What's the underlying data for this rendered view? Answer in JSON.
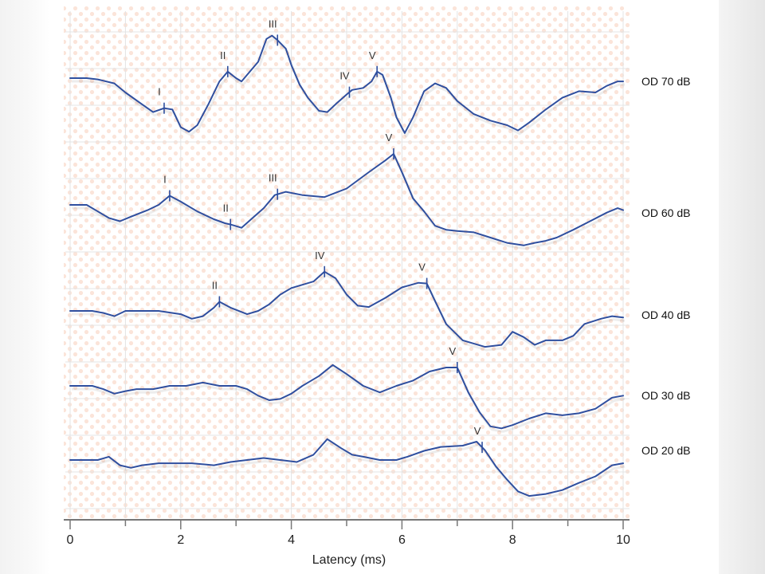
{
  "chart_data": {
    "type": "line",
    "title": "",
    "xlabel": "Latency (ms)",
    "ylabel": "",
    "xlim": [
      0,
      10
    ],
    "xticks": [
      "0",
      "2",
      "4",
      "6",
      "8",
      "10"
    ],
    "grid": true,
    "series": [
      {
        "name": "OD 70 dB",
        "color": "#2f4f9f",
        "points": [
          [
            0,
            0
          ],
          [
            0.3,
            0
          ],
          [
            0.5,
            -2
          ],
          [
            0.8,
            -8
          ],
          [
            1.0,
            -22
          ],
          [
            1.3,
            -40
          ],
          [
            1.5,
            -52
          ],
          [
            1.7,
            -46
          ],
          [
            1.85,
            -48
          ],
          [
            2.0,
            -75
          ],
          [
            2.15,
            -82
          ],
          [
            2.3,
            -72
          ],
          [
            2.5,
            -40
          ],
          [
            2.7,
            -5
          ],
          [
            2.85,
            10
          ],
          [
            3.0,
            0
          ],
          [
            3.1,
            -5
          ],
          [
            3.2,
            5
          ],
          [
            3.4,
            25
          ],
          [
            3.55,
            60
          ],
          [
            3.65,
            65
          ],
          [
            3.75,
            58
          ],
          [
            3.9,
            45
          ],
          [
            4.0,
            20
          ],
          [
            4.15,
            -10
          ],
          [
            4.3,
            -30
          ],
          [
            4.5,
            -50
          ],
          [
            4.65,
            -52
          ],
          [
            4.8,
            -40
          ],
          [
            5.0,
            -25
          ],
          [
            5.1,
            -18
          ],
          [
            5.3,
            -15
          ],
          [
            5.45,
            -5
          ],
          [
            5.55,
            10
          ],
          [
            5.65,
            5
          ],
          [
            5.8,
            -30
          ],
          [
            5.9,
            -60
          ],
          [
            6.05,
            -84
          ],
          [
            6.2,
            -60
          ],
          [
            6.4,
            -20
          ],
          [
            6.6,
            -8
          ],
          [
            6.8,
            -15
          ],
          [
            7.0,
            -35
          ],
          [
            7.3,
            -55
          ],
          [
            7.6,
            -65
          ],
          [
            7.9,
            -72
          ],
          [
            8.1,
            -80
          ],
          [
            8.3,
            -68
          ],
          [
            8.6,
            -48
          ],
          [
            8.9,
            -30
          ],
          [
            9.2,
            -20
          ],
          [
            9.5,
            -22
          ],
          [
            9.7,
            -12
          ],
          [
            9.9,
            -5
          ],
          [
            10.0,
            -5
          ]
        ],
        "peaks": [
          {
            "label": "I",
            "x": 1.7
          },
          {
            "label": "II",
            "x": 2.85
          },
          {
            "label": "III",
            "x": 3.75
          },
          {
            "label": "IV",
            "x": 5.05
          },
          {
            "label": "V",
            "x": 5.55
          }
        ]
      },
      {
        "name": "OD 60 dB",
        "color": "#2f4f9f",
        "points": [
          [
            0,
            0
          ],
          [
            0.3,
            0
          ],
          [
            0.5,
            -10
          ],
          [
            0.7,
            -20
          ],
          [
            0.9,
            -25
          ],
          [
            1.1,
            -18
          ],
          [
            1.4,
            -8
          ],
          [
            1.6,
            0
          ],
          [
            1.8,
            14
          ],
          [
            2.0,
            5
          ],
          [
            2.3,
            -10
          ],
          [
            2.6,
            -22
          ],
          [
            2.8,
            -28
          ],
          [
            2.9,
            -30
          ],
          [
            3.1,
            -35
          ],
          [
            3.3,
            -20
          ],
          [
            3.5,
            -5
          ],
          [
            3.7,
            15
          ],
          [
            3.9,
            20
          ],
          [
            4.2,
            15
          ],
          [
            4.6,
            12
          ],
          [
            5.0,
            25
          ],
          [
            5.4,
            50
          ],
          [
            5.7,
            68
          ],
          [
            5.85,
            78
          ],
          [
            6.0,
            50
          ],
          [
            6.2,
            10
          ],
          [
            6.4,
            -10
          ],
          [
            6.6,
            -32
          ],
          [
            6.8,
            -38
          ],
          [
            7.0,
            -40
          ],
          [
            7.3,
            -42
          ],
          [
            7.6,
            -50
          ],
          [
            7.9,
            -58
          ],
          [
            8.2,
            -62
          ],
          [
            8.4,
            -58
          ],
          [
            8.6,
            -55
          ],
          [
            8.8,
            -50
          ],
          [
            9.1,
            -38
          ],
          [
            9.4,
            -25
          ],
          [
            9.7,
            -12
          ],
          [
            9.9,
            -5
          ],
          [
            10.0,
            -8
          ]
        ],
        "peaks": [
          {
            "label": "I",
            "x": 1.8
          },
          {
            "label": "II",
            "x": 2.9
          },
          {
            "label": "III",
            "x": 3.75
          },
          {
            "label": "V",
            "x": 5.85
          }
        ]
      },
      {
        "name": "OD 40 dB",
        "color": "#2f4f9f",
        "points": [
          [
            0,
            0
          ],
          [
            0.4,
            0
          ],
          [
            0.6,
            -3
          ],
          [
            0.8,
            -8
          ],
          [
            1.0,
            0
          ],
          [
            1.3,
            0
          ],
          [
            1.6,
            0
          ],
          [
            2.0,
            -5
          ],
          [
            2.2,
            -12
          ],
          [
            2.4,
            -8
          ],
          [
            2.6,
            5
          ],
          [
            2.7,
            14
          ],
          [
            2.9,
            5
          ],
          [
            3.2,
            -5
          ],
          [
            3.4,
            0
          ],
          [
            3.6,
            10
          ],
          [
            3.8,
            25
          ],
          [
            4.0,
            35
          ],
          [
            4.2,
            40
          ],
          [
            4.4,
            45
          ],
          [
            4.6,
            60
          ],
          [
            4.8,
            50
          ],
          [
            5.0,
            25
          ],
          [
            5.2,
            8
          ],
          [
            5.4,
            6
          ],
          [
            5.7,
            20
          ],
          [
            6.0,
            36
          ],
          [
            6.3,
            43
          ],
          [
            6.45,
            42
          ],
          [
            6.6,
            15
          ],
          [
            6.8,
            -20
          ],
          [
            7.1,
            -45
          ],
          [
            7.5,
            -55
          ],
          [
            7.8,
            -52
          ],
          [
            8.0,
            -32
          ],
          [
            8.2,
            -40
          ],
          [
            8.4,
            -52
          ],
          [
            8.6,
            -45
          ],
          [
            8.9,
            -45
          ],
          [
            9.1,
            -38
          ],
          [
            9.3,
            -20
          ],
          [
            9.6,
            -12
          ],
          [
            9.8,
            -8
          ],
          [
            10.0,
            -10
          ]
        ],
        "peaks": [
          {
            "label": "II",
            "x": 2.7
          },
          {
            "label": "IV",
            "x": 4.6
          },
          {
            "label": "V",
            "x": 6.45
          }
        ]
      },
      {
        "name": "OD 30 dB",
        "color": "#2f4f9f",
        "points": [
          [
            0,
            0
          ],
          [
            0.4,
            0
          ],
          [
            0.6,
            -5
          ],
          [
            0.8,
            -12
          ],
          [
            1.0,
            -8
          ],
          [
            1.2,
            -5
          ],
          [
            1.5,
            -5
          ],
          [
            1.8,
            0
          ],
          [
            2.1,
            0
          ],
          [
            2.4,
            5
          ],
          [
            2.7,
            0
          ],
          [
            3.0,
            0
          ],
          [
            3.2,
            -5
          ],
          [
            3.4,
            -15
          ],
          [
            3.6,
            -22
          ],
          [
            3.8,
            -20
          ],
          [
            4.0,
            -12
          ],
          [
            4.2,
            0
          ],
          [
            4.5,
            15
          ],
          [
            4.75,
            32
          ],
          [
            5.0,
            18
          ],
          [
            5.3,
            0
          ],
          [
            5.6,
            -10
          ],
          [
            5.9,
            0
          ],
          [
            6.2,
            8
          ],
          [
            6.5,
            22
          ],
          [
            6.8,
            28
          ],
          [
            7.0,
            28
          ],
          [
            7.2,
            -10
          ],
          [
            7.4,
            -40
          ],
          [
            7.6,
            -62
          ],
          [
            7.8,
            -65
          ],
          [
            8.0,
            -60
          ],
          [
            8.3,
            -50
          ],
          [
            8.6,
            -42
          ],
          [
            8.9,
            -45
          ],
          [
            9.2,
            -42
          ],
          [
            9.5,
            -35
          ],
          [
            9.8,
            -18
          ],
          [
            10.0,
            -15
          ]
        ],
        "peaks": [
          {
            "label": "V",
            "x": 7.0
          }
        ]
      },
      {
        "name": "OD 20 dB",
        "color": "#2f4f9f",
        "points": [
          [
            0,
            0
          ],
          [
            0.3,
            0
          ],
          [
            0.5,
            0
          ],
          [
            0.7,
            5
          ],
          [
            0.9,
            -8
          ],
          [
            1.1,
            -12
          ],
          [
            1.3,
            -8
          ],
          [
            1.6,
            -5
          ],
          [
            1.9,
            -5
          ],
          [
            2.2,
            -5
          ],
          [
            2.6,
            -8
          ],
          [
            2.9,
            -3
          ],
          [
            3.2,
            0
          ],
          [
            3.5,
            3
          ],
          [
            3.8,
            0
          ],
          [
            4.1,
            -3
          ],
          [
            4.4,
            8
          ],
          [
            4.65,
            32
          ],
          [
            4.9,
            18
          ],
          [
            5.1,
            8
          ],
          [
            5.3,
            5
          ],
          [
            5.6,
            0
          ],
          [
            5.9,
            0
          ],
          [
            6.1,
            5
          ],
          [
            6.4,
            14
          ],
          [
            6.7,
            20
          ],
          [
            7.1,
            22
          ],
          [
            7.35,
            28
          ],
          [
            7.5,
            15
          ],
          [
            7.7,
            -10
          ],
          [
            7.9,
            -30
          ],
          [
            8.1,
            -48
          ],
          [
            8.3,
            -55
          ],
          [
            8.6,
            -52
          ],
          [
            8.9,
            -46
          ],
          [
            9.2,
            -35
          ],
          [
            9.5,
            -25
          ],
          [
            9.8,
            -8
          ],
          [
            10.0,
            -5
          ]
        ],
        "peaks": [
          {
            "label": "V",
            "x": 7.45
          }
        ]
      }
    ]
  }
}
